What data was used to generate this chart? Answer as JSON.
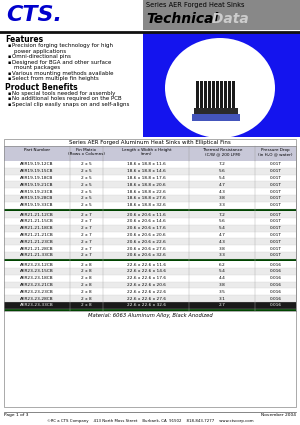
{
  "title_series": "Series AER Forged Heat Sinks",
  "title_main": "Technical",
  "title_main2": " Data",
  "company": "CTS.",
  "company_color": "#0000CC",
  "header_bg": "#888888",
  "features_title": "Features",
  "features": [
    "Precision forging technology for high\npower applications",
    "Omni-directional pins",
    "Designed for BGA and other surface\nmount packages",
    "Various mounting methods available",
    "Select from multiple fin heights"
  ],
  "benefits_title": "Product Benefits",
  "benefits": [
    "No special tools needed for assembly",
    "No additional holes required on the PCB",
    "Special clip easily snaps on and self-aligns"
  ],
  "table_title": "Series AER Forged Aluminum Heat Sinks with Elliptical Fins",
  "col_headers": [
    "Part Number",
    "Fin Matrix\n(Rows x Columns)",
    "Length x Width x Height\n(mm)",
    "Thermal Resistance\n(C/W @ 200 LFM)",
    "Pressure Drop\n(in H₂O @ water)"
  ],
  "col_header_bg": "#C8C8D8",
  "rows": [
    [
      "AER19-19-12CB",
      "2 x 5",
      "18.6 x 18.8 x 11.6",
      "7.2",
      "0.01T"
    ],
    [
      "AER19-19-15CB",
      "2 x 5",
      "18.6 x 18.8 x 14.6",
      "5.6",
      "0.01T"
    ],
    [
      "AER19-19-18CB",
      "2 x 5",
      "18.6 x 18.8 x 17.6",
      "5.4",
      "0.01T"
    ],
    [
      "AER19-19-21CB",
      "2 x 5",
      "18.6 x 18.8 x 20.6",
      "4.7",
      "0.01T"
    ],
    [
      "AER19-19-23CB",
      "2 x 5",
      "18.6 x 18.8 x 22.6",
      "4.3",
      "0.01T"
    ],
    [
      "AER19-19-28CB",
      "2 x 5",
      "18.6 x 18.8 x 27.6",
      "3.8",
      "0.01T"
    ],
    [
      "AER19-19-33CB",
      "2 x 5",
      "18.6 x 18.8 x 32.6",
      "3.3",
      "0.01T"
    ],
    [
      "AER21-21-12CB",
      "2 x 7",
      "20.6 x 20.6 x 11.6",
      "7.2",
      "0.01T"
    ],
    [
      "AER21-21-15CB",
      "2 x 7",
      "20.6 x 20.6 x 14.6",
      "5.6",
      "0.01T"
    ],
    [
      "AER21-21-18CB",
      "2 x 7",
      "20.6 x 20.6 x 17.6",
      "5.4",
      "0.01T"
    ],
    [
      "AER21-21-21CB",
      "2 x 7",
      "20.6 x 20.6 x 20.6",
      "4.7",
      "0.01T"
    ],
    [
      "AER21-21-23CB",
      "2 x 7",
      "20.6 x 20.6 x 22.6",
      "4.3",
      "0.01T"
    ],
    [
      "AER21-21-28CB",
      "2 x 7",
      "20.6 x 20.6 x 27.6",
      "3.8",
      "0.01T"
    ],
    [
      "AER21-21-33CB",
      "2 x 7",
      "20.6 x 20.6 x 32.6",
      "3.3",
      "0.01T"
    ],
    [
      "AER23-23-12CB",
      "2 x 8",
      "22.6 x 22.6 x 11.6",
      "6.2",
      "0.016"
    ],
    [
      "AER23-23-15CB",
      "2 x 8",
      "22.6 x 22.6 x 14.6",
      "5.4",
      "0.016"
    ],
    [
      "AER23-23-18CB",
      "2 x 8",
      "22.6 x 22.6 x 17.6",
      "4.4",
      "0.016"
    ],
    [
      "AER23-23-21CB",
      "2 x 8",
      "22.6 x 22.6 x 20.6",
      "3.8",
      "0.016"
    ],
    [
      "AER23-23-23CB",
      "2 x 8",
      "22.6 x 22.6 x 22.6",
      "3.5",
      "0.016"
    ],
    [
      "AER23-23-28CB",
      "2 x 8",
      "22.6 x 22.6 x 27.6",
      "3.1",
      "0.016"
    ],
    [
      "AER23-23-33CB",
      "2 x 8",
      "22.6 x 22.6 x 32.6",
      "2.7",
      "0.016"
    ]
  ],
  "highlighted_row": 21,
  "highlight_color": "#1a1a1a",
  "highlight_text_color": "#FFFFFF",
  "separator_rows": [
    7,
    14
  ],
  "separator_color": "#004400",
  "footer_material": "Material: 6063 Aluminum Alloy, Black Anodized",
  "footer_page": "Page 1 of 3",
  "footer_date": "November 2004",
  "footer_company": "©RC a CTS Company    413 North Moss Street    Burbank, CA  91502    818-843-7277    www.ctscorp.com",
  "bg_color": "#FFFFFF",
  "image_bg": "#1414EE",
  "table_border_color": "#888888",
  "alt_row_color": "#EBEBEB",
  "normal_row_color": "#FFFFFF"
}
